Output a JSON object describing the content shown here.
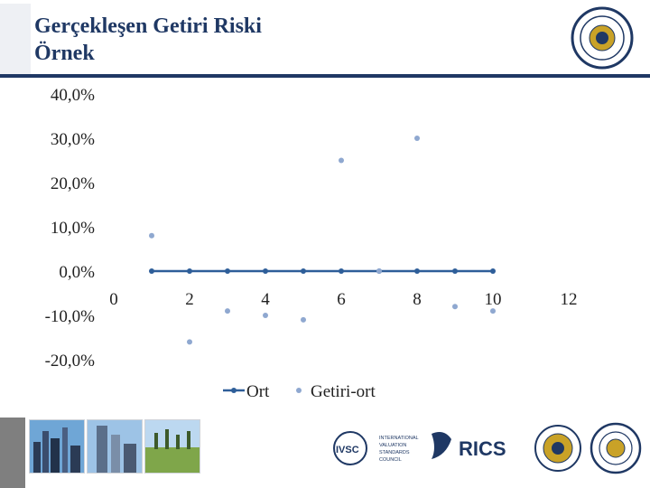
{
  "slide": {
    "title_line1": "Gerçekleşen Getiri Riski",
    "title_line2": "Örnek",
    "accent_color": "#1f3864"
  },
  "logos": {
    "rics_text": "RICS",
    "ivsc_text": "IVSC",
    "ivsc_subtitle": [
      "INTERNATIONAL",
      "VALUATION",
      "STANDARDS",
      "COUNCIL"
    ]
  },
  "chart_data": {
    "type": "scatter",
    "x_ticks": [
      "0",
      "2",
      "4",
      "6",
      "8",
      "10",
      "12"
    ],
    "y_ticks": [
      "40,0%",
      "30,0%",
      "20,0%",
      "10,0%",
      "0,0%",
      "-10,0%",
      "-20,0%"
    ],
    "xlim": [
      0,
      12
    ],
    "ylim": [
      -20,
      40
    ],
    "grid": false,
    "legend": "bottom",
    "series": [
      {
        "name": "Ort",
        "style": "line-markers",
        "color": "#2e5e99",
        "x": [
          1,
          2,
          3,
          4,
          5,
          6,
          7,
          8,
          9,
          10
        ],
        "y": [
          0,
          0,
          0,
          0,
          0,
          0,
          0,
          0,
          0,
          0
        ]
      },
      {
        "name": "Getiri-ort",
        "style": "markers",
        "color": "#8fa8d0",
        "x": [
          1,
          2,
          3,
          4,
          5,
          6,
          7,
          8,
          9,
          10
        ],
        "y": [
          8,
          -16,
          -9,
          -10,
          -11,
          25,
          0,
          30,
          -8,
          -9
        ]
      }
    ]
  }
}
